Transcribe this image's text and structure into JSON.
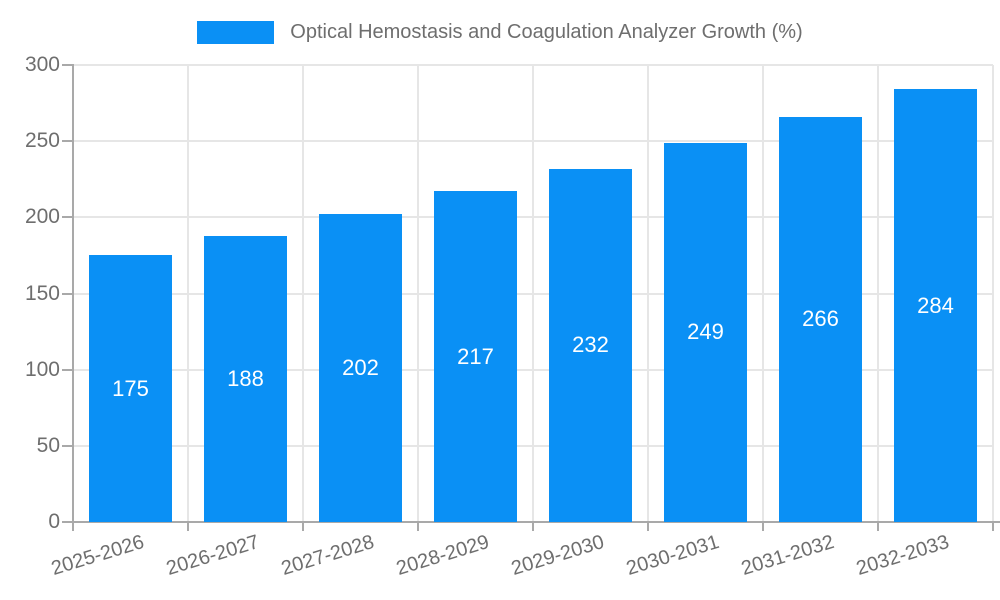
{
  "chart_data": {
    "type": "bar",
    "title": "Optical Hemostasis and Coagulation Analyzer Growth (%)",
    "legend_entries": [
      "Optical Hemostasis and Coagulation Analyzer Growth (%)"
    ],
    "legend_position": "top-center",
    "categories": [
      "2025-2026",
      "2026-2027",
      "2027-2028",
      "2028-2029",
      "2029-2030",
      "2030-2031",
      "2031-2032",
      "2032-2033"
    ],
    "values": [
      175,
      188,
      202,
      217,
      232,
      249,
      266,
      284
    ],
    "xlabel": "",
    "ylabel": "",
    "ylim": [
      0,
      300
    ],
    "yticks": [
      0,
      50,
      100,
      150,
      200,
      250,
      300
    ],
    "grid": true,
    "value_labels_position": "inside-center",
    "x_tick_label_rotation_deg": -17,
    "colors": {
      "bar": "#0a90f5",
      "grid": "#e6e6e6",
      "axis": "#a9a9a9",
      "tick_label": "#6e6e6e",
      "legend_label": "#6e6e6e",
      "value_label": "#ffffff",
      "background": "#ffffff"
    }
  }
}
